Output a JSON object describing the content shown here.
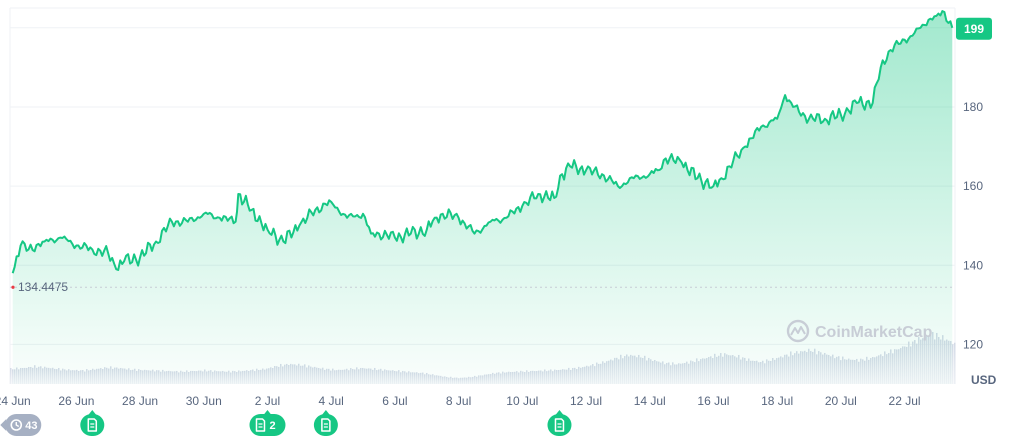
{
  "chart_data": {
    "type": "area",
    "currency": "USD",
    "watermark": "CoinMarketCap",
    "current_price": "199",
    "baseline": 134.4475,
    "baseline_label": "134.4475",
    "ylim": [
      110,
      205
    ],
    "yticks": [
      {
        "value": 120,
        "label": "120"
      },
      {
        "value": 140,
        "label": "140"
      },
      {
        "value": 160,
        "label": "160"
      },
      {
        "value": 180,
        "label": "180"
      }
    ],
    "x_start": "2024-06-23T22:00",
    "x_end": "2024-07-23T14:00",
    "xticks": [
      {
        "date": "2024-06-24",
        "label": "24 Jun"
      },
      {
        "date": "2024-06-26",
        "label": "26 Jun"
      },
      {
        "date": "2024-06-28",
        "label": "28 Jun"
      },
      {
        "date": "2024-06-30",
        "label": "30 Jun"
      },
      {
        "date": "2024-07-02",
        "label": "2 Jul"
      },
      {
        "date": "2024-07-04",
        "label": "4 Jul"
      },
      {
        "date": "2024-07-06",
        "label": "6 Jul"
      },
      {
        "date": "2024-07-08",
        "label": "8 Jul"
      },
      {
        "date": "2024-07-10",
        "label": "10 Jul"
      },
      {
        "date": "2024-07-12",
        "label": "12 Jul"
      },
      {
        "date": "2024-07-14",
        "label": "14 Jul"
      },
      {
        "date": "2024-07-16",
        "label": "16 Jul"
      },
      {
        "date": "2024-07-18",
        "label": "18 Jul"
      },
      {
        "date": "2024-07-20",
        "label": "20 Jul"
      },
      {
        "date": "2024-07-22",
        "label": "22 Jul"
      }
    ],
    "series": [
      {
        "color": "#16c784",
        "points": [
          [
            "2024-06-24T00:00",
            138
          ],
          [
            "2024-06-24T06:00",
            145
          ],
          [
            "2024-06-24T12:00",
            144
          ],
          [
            "2024-06-25T00:00",
            146
          ],
          [
            "2024-06-25T12:00",
            147
          ],
          [
            "2024-06-26T00:00",
            145
          ],
          [
            "2024-06-26T12:00",
            144
          ],
          [
            "2024-06-27T00:00",
            143
          ],
          [
            "2024-06-27T06:00",
            139
          ],
          [
            "2024-06-27T12:00",
            141
          ],
          [
            "2024-06-28T00:00",
            142
          ],
          [
            "2024-06-28T12:00",
            146
          ],
          [
            "2024-06-29T00:00",
            151
          ],
          [
            "2024-06-29T12:00",
            151
          ],
          [
            "2024-06-30T00:00",
            153
          ],
          [
            "2024-06-30T12:00",
            152
          ],
          [
            "2024-07-01T00:00",
            151
          ],
          [
            "2024-07-01T02:00",
            158
          ],
          [
            "2024-07-01T12:00",
            154
          ],
          [
            "2024-07-02T00:00",
            149
          ],
          [
            "2024-07-02T12:00",
            146
          ],
          [
            "2024-07-03T00:00",
            150
          ],
          [
            "2024-07-03T12:00",
            154
          ],
          [
            "2024-07-04T00:00",
            156
          ],
          [
            "2024-07-04T12:00",
            152
          ],
          [
            "2024-07-05T00:00",
            153
          ],
          [
            "2024-07-05T06:00",
            148
          ],
          [
            "2024-07-05T12:00",
            148
          ],
          [
            "2024-07-06T00:00",
            147
          ],
          [
            "2024-07-06T12:00",
            148
          ],
          [
            "2024-07-07T00:00",
            149
          ],
          [
            "2024-07-07T06:00",
            152
          ],
          [
            "2024-07-07T12:00",
            153
          ],
          [
            "2024-07-08T00:00",
            152
          ],
          [
            "2024-07-08T12:00",
            148
          ],
          [
            "2024-07-09T00:00",
            151
          ],
          [
            "2024-07-09T12:00",
            152
          ],
          [
            "2024-07-10T00:00",
            155
          ],
          [
            "2024-07-10T12:00",
            158
          ],
          [
            "2024-07-11T00:00",
            157
          ],
          [
            "2024-07-11T06:00",
            163
          ],
          [
            "2024-07-11T12:00",
            165
          ],
          [
            "2024-07-12T00:00",
            164
          ],
          [
            "2024-07-12T12:00",
            163
          ],
          [
            "2024-07-13T00:00",
            160
          ],
          [
            "2024-07-13T12:00",
            162
          ],
          [
            "2024-07-14T00:00",
            163
          ],
          [
            "2024-07-14T06:00",
            164
          ],
          [
            "2024-07-14T12:00",
            167
          ],
          [
            "2024-07-15T00:00",
            166
          ],
          [
            "2024-07-15T12:00",
            162
          ],
          [
            "2024-07-16T00:00",
            160
          ],
          [
            "2024-07-16T06:00",
            162
          ],
          [
            "2024-07-16T12:00",
            165
          ],
          [
            "2024-07-17T00:00",
            170
          ],
          [
            "2024-07-17T12:00",
            175
          ],
          [
            "2024-07-18T00:00",
            177
          ],
          [
            "2024-07-18T06:00",
            183
          ],
          [
            "2024-07-18T12:00",
            180
          ],
          [
            "2024-07-19T00:00",
            177
          ],
          [
            "2024-07-19T12:00",
            177
          ],
          [
            "2024-07-20T00:00",
            178
          ],
          [
            "2024-07-20T06:00",
            179
          ],
          [
            "2024-07-20T12:00",
            181
          ],
          [
            "2024-07-21T00:00",
            181
          ],
          [
            "2024-07-21T06:00",
            190
          ],
          [
            "2024-07-21T12:00",
            194
          ],
          [
            "2024-07-22T00:00",
            197
          ],
          [
            "2024-07-22T06:00",
            198
          ],
          [
            "2024-07-22T12:00",
            200
          ],
          [
            "2024-07-22T18:00",
            202
          ],
          [
            "2024-07-23T00:00",
            203
          ],
          [
            "2024-07-23T06:00",
            204
          ],
          [
            "2024-07-23T12:00",
            200
          ]
        ]
      }
    ],
    "volume_profile": [
      0.3,
      0.32,
      0.35,
      0.33,
      0.3,
      0.28,
      0.27,
      0.3,
      0.33,
      0.32,
      0.29,
      0.28,
      0.27,
      0.26,
      0.25,
      0.26,
      0.27,
      0.26,
      0.25,
      0.26,
      0.28,
      0.3,
      0.36,
      0.4,
      0.38,
      0.34,
      0.3,
      0.28,
      0.3,
      0.32,
      0.3,
      0.28,
      0.26,
      0.24,
      0.22,
      0.18,
      0.14,
      0.12,
      0.14,
      0.18,
      0.22,
      0.24,
      0.25,
      0.26,
      0.27,
      0.28,
      0.3,
      0.33,
      0.38,
      0.44,
      0.52,
      0.58,
      0.55,
      0.48,
      0.42,
      0.4,
      0.44,
      0.5,
      0.56,
      0.6,
      0.55,
      0.48,
      0.44,
      0.5,
      0.58,
      0.64,
      0.68,
      0.62,
      0.55,
      0.5,
      0.48,
      0.52,
      0.6,
      0.68,
      0.78,
      0.9,
      1.0,
      0.92,
      0.8
    ],
    "grid": true
  },
  "events": [
    {
      "date": "2024-06-24T08:00",
      "kind": "history",
      "icon": "clock-icon",
      "count": "43"
    },
    {
      "date": "2024-06-26T12:00",
      "kind": "news",
      "icon": "document-icon",
      "count": ""
    },
    {
      "date": "2024-07-02T00:00",
      "kind": "news",
      "icon": "document-icon",
      "count": "2"
    },
    {
      "date": "2024-07-03T20:00",
      "kind": "news",
      "icon": "document-icon",
      "count": ""
    },
    {
      "date": "2024-07-11T04:00",
      "kind": "news",
      "icon": "document-icon",
      "count": ""
    }
  ],
  "colors": {
    "line": "#16c784",
    "grid": "#eff2f5",
    "baseline": "#c7ccd6",
    "baseline_marker": "#ea3943",
    "event_badge": "#16c784",
    "history_badge": "#a6b0c3"
  }
}
